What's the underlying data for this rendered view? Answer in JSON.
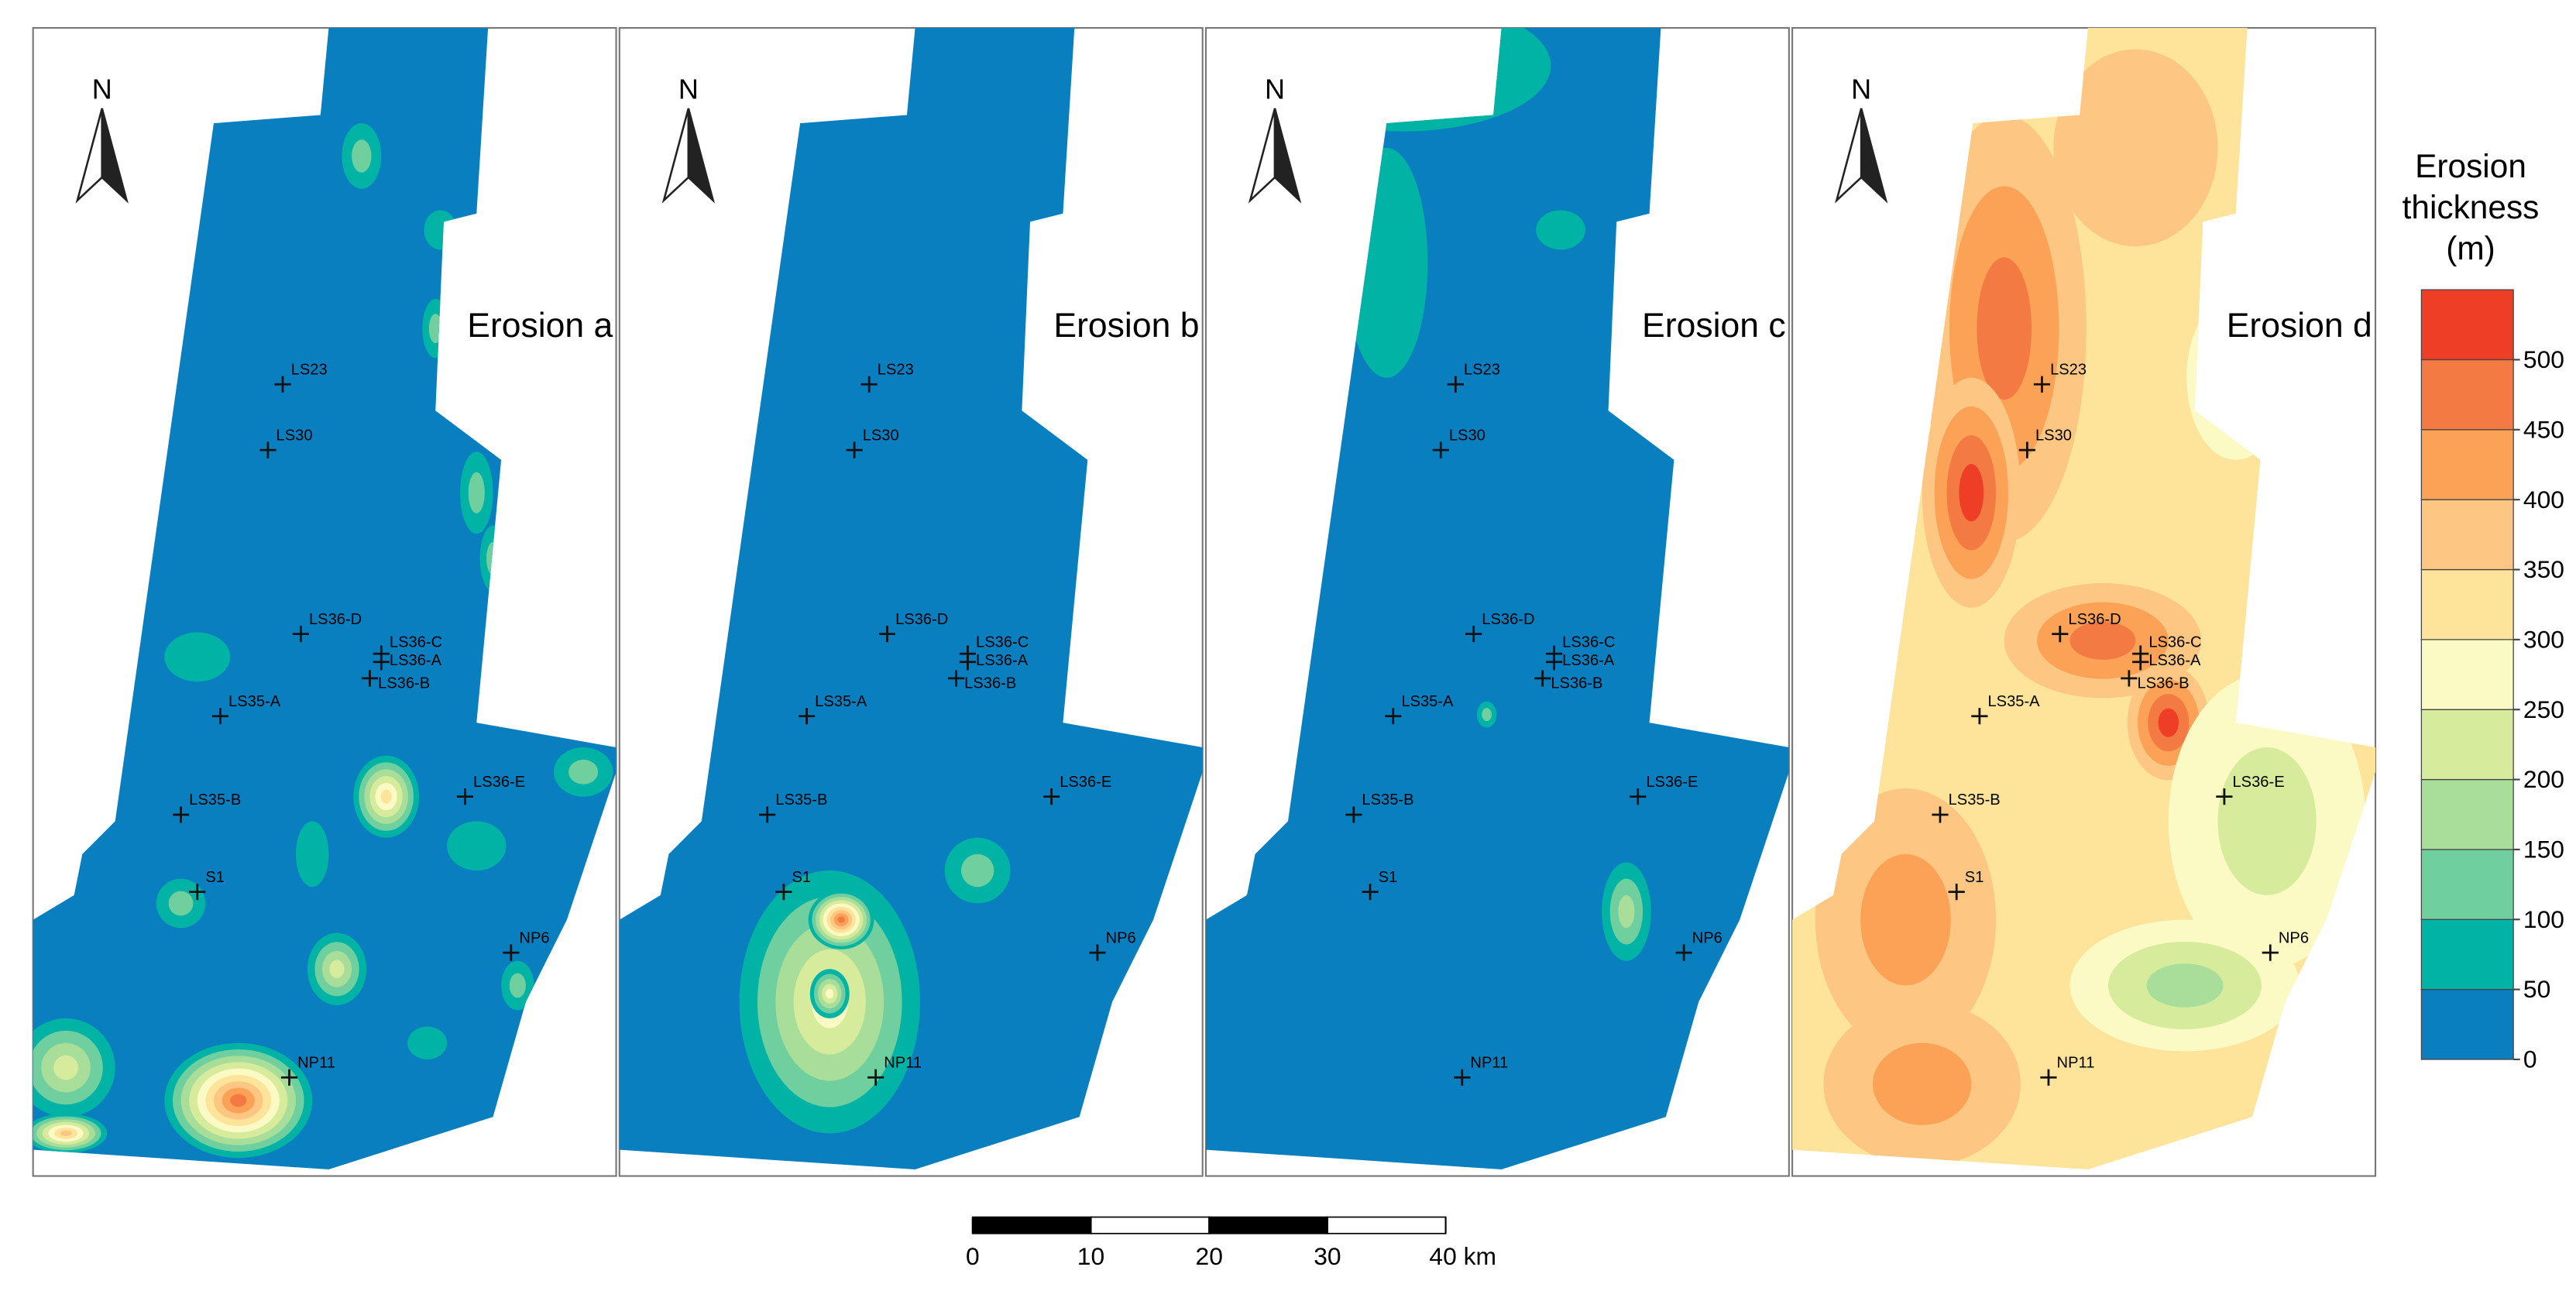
{
  "panels": [
    {
      "title": "Erosion a"
    },
    {
      "title": "Erosion b"
    },
    {
      "title": "Erosion c"
    },
    {
      "title": "Erosion d"
    }
  ],
  "north": "N",
  "wells": [
    "LS23",
    "LS30",
    "LS36-D",
    "LS36-C",
    "LS36-A",
    "LS36-B",
    "LS35-A",
    "LS36-E",
    "LS35-B",
    "S1",
    "NP6",
    "NP11"
  ],
  "legend": {
    "title": [
      "Erosion",
      "thickness",
      "(m)"
    ],
    "ticks": [
      0,
      50,
      100,
      150,
      200,
      250,
      300,
      350,
      400,
      450,
      500
    ],
    "colors": [
      "#0a7fc0",
      "#00b3a4",
      "#6fcf9f",
      "#a8dd9a",
      "#d6ec9c",
      "#fbfac4",
      "#fde49a",
      "#fdc783",
      "#fba257",
      "#f47a44",
      "#ef3e26"
    ]
  },
  "scale_bar": {
    "ticks": [
      0,
      10,
      20,
      30,
      {
        "value": 40,
        "label": "40 km"
      }
    ]
  }
}
